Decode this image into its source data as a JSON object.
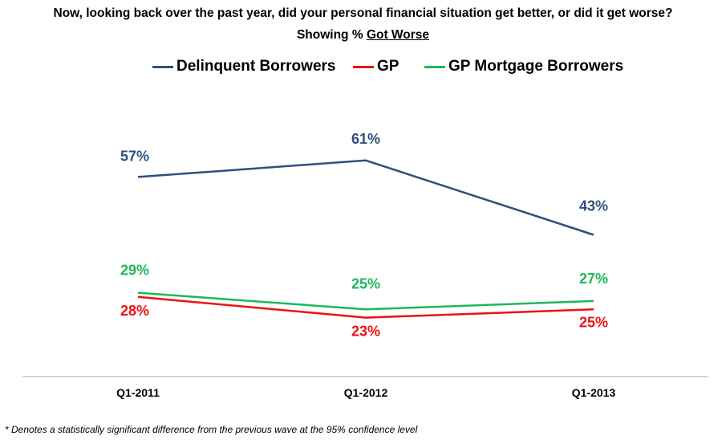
{
  "chart_data": {
    "type": "line",
    "title": "Now, looking back over the past year, did your personal financial situation get better, or did it get worse?",
    "subtitle_prefix": "Showing %",
    "subtitle_emph": "Got Worse",
    "categories": [
      "Q1-2011",
      "Q1-2012",
      "Q1-2013"
    ],
    "ylim": [
      0,
      100
    ],
    "grid": false,
    "legend_position": "top",
    "series": [
      {
        "name": "Delinquent Borrowers",
        "color": "#2E4F7E",
        "values": [
          57,
          61,
          43
        ],
        "labels": [
          "57%",
          "61%",
          "43%"
        ]
      },
      {
        "name": "GP",
        "color": "#EE1111",
        "values": [
          28,
          23,
          25
        ],
        "labels": [
          "28%",
          "23%",
          "25%"
        ]
      },
      {
        "name": "GP Mortgage Borrowers",
        "color": "#1DB85A",
        "values": [
          29,
          25,
          27
        ],
        "labels": [
          "29%",
          "25%",
          "27%"
        ]
      }
    ],
    "footnote": "* Denotes a statistically significant difference from the previous wave at the 95% confidence level"
  }
}
